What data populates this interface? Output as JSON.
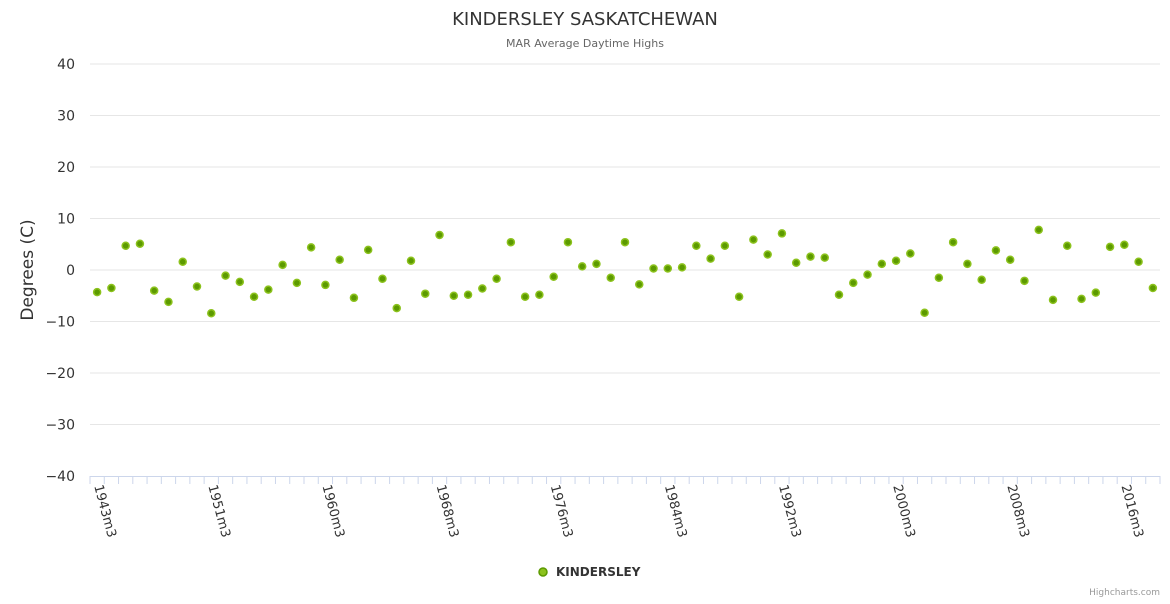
{
  "chart_data": {
    "type": "scatter",
    "title": "KINDERSLEY SASKATCHEWAN",
    "subtitle": "MAR Average Daytime Highs",
    "ylabel": "Degrees (C)",
    "xlabel": "",
    "ylim": [
      -40,
      40
    ],
    "yticks": [
      40,
      30,
      20,
      10,
      0,
      -10,
      -20,
      -30,
      -40
    ],
    "xtick_labels": [
      "1943m3",
      "1951m3",
      "1960m3",
      "1968m3",
      "1976m3",
      "1984m3",
      "1992m3",
      "2000m3",
      "2008m3",
      "2016m3"
    ],
    "xtick_every": 8,
    "grid": true,
    "legend": {
      "position": "bottom-center",
      "entries": [
        "KINDERSLEY"
      ]
    },
    "credits": "Highcharts.com",
    "series": [
      {
        "name": "KINDERSLEY",
        "color": "#5c9a00",
        "fill": "#8cc21d",
        "values": [
          -4.3,
          -3.5,
          4.7,
          5.1,
          -4.0,
          -6.2,
          1.6,
          -3.2,
          -8.4,
          -1.1,
          -2.3,
          -5.2,
          -3.8,
          1.0,
          -2.5,
          4.4,
          -2.9,
          2.0,
          -5.4,
          3.9,
          -1.7,
          -7.4,
          1.8,
          -4.6,
          6.8,
          -5.0,
          -4.8,
          -3.6,
          -1.7,
          5.4,
          -5.2,
          -4.8,
          -1.3,
          5.4,
          0.7,
          1.2,
          -1.5,
          5.4,
          -2.8,
          0.3,
          0.3,
          0.5,
          4.7,
          2.2,
          4.7,
          -5.2,
          5.9,
          3.0,
          7.1,
          1.4,
          2.6,
          2.4,
          -4.8,
          -2.5,
          -0.9,
          1.2,
          1.8,
          3.2,
          -8.3,
          -1.5,
          5.4,
          1.2,
          -1.9,
          3.8,
          2.0,
          -2.1,
          7.8,
          -5.8,
          4.7,
          -5.6,
          -4.4,
          4.5,
          4.9,
          1.6,
          -3.5
        ]
      }
    ]
  }
}
